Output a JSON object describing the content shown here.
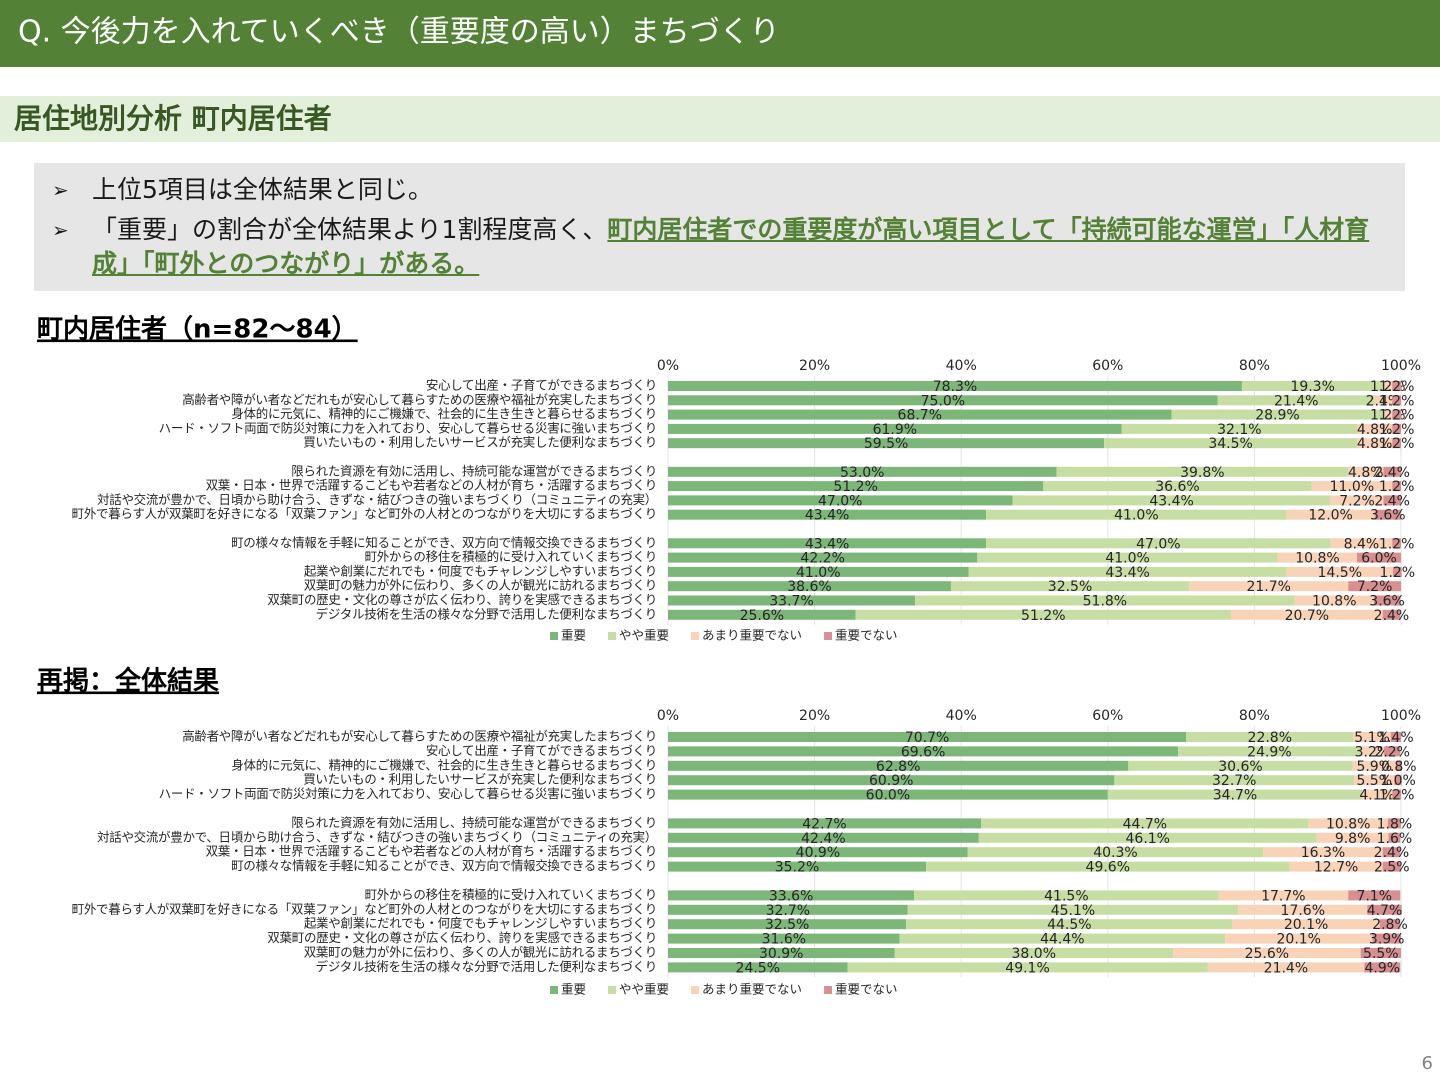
{
  "header": {
    "title": "Q.  今後力を入れていくべき（重要度の高い）まちづくり"
  },
  "section": {
    "title": "居住地別分析   町内居住者"
  },
  "bullets": [
    {
      "text": "上位5項目は全体結果と同じ。"
    },
    {
      "text": "「重要」の割合が全体結果より1割程度高く、",
      "highlight": "町内居住者での重要度が高い項目として「持続可能な運営」「人材育成」「町外とのつながり」がある。"
    }
  ],
  "page_number": "6",
  "chart_data": [
    {
      "type": "stacked-barh",
      "title": "町内居住者（n=82～84）",
      "categories": [
        "安心して出産・子育てができるまちづくり",
        "高齢者や障がい者などだれもが安心して暮らすための医療や福祉が充実したまちづくり",
        "身体的に元気に、精神的にご機嫌で、社会的に生き生きと暮らせるまちづくり",
        "ハード・ソフト両面で防災対策に力を入れており、安心して暮らせる災害に強いまちづくり",
        "買いたいもの・利用したいサービスが充実した便利なまちづくり",
        null,
        "限られた資源を有効に活用し、持続可能な運営ができるまちづくり",
        "双葉・日本・世界で活躍するこどもや若者などの人材が育ち・活躍するまちづくり",
        "対話や交流が豊かで、日頃から助け合う、きずな・結びつきの強いまちづくり（コミュニティの充実）",
        "町外で暮らす人が双葉町を好きになる「双葉ファン」など町外の人材とのつながりを大切にするまちづくり",
        null,
        "町の様々な情報を手軽に知ることができ、双方向で情報交換できるまちづくり",
        "町外からの移住を積極的に受け入れていくまちづくり",
        "起業や創業にだれでも・何度でもチャレンジしやすいまちづくり",
        "双葉町の魅力が外に伝わり、多くの人が観光に訪れるまちづくり",
        "双葉町の歴史・文化の尊さが広く伝わり、誇りを実感できるまちづくり",
        "デジタル技術を生活の様々な分野で活用した便利なまちづくり"
      ],
      "series": [
        {
          "name": "重要",
          "color": "#7cb679",
          "values": [
            78.3,
            75.0,
            68.7,
            61.9,
            59.5,
            null,
            53.0,
            51.2,
            47.0,
            43.4,
            null,
            43.4,
            42.2,
            41.0,
            38.6,
            33.7,
            25.6
          ],
          "value_labels": [
            "78.3%",
            "75.0%",
            "68.7%",
            "61.9%",
            "59.5%",
            null,
            "53.0%",
            "51.2%",
            "47.0%",
            "43.4%",
            null,
            "43.4%",
            "42.2%",
            "41.0%",
            "38.6%",
            "33.7%",
            "25.6%"
          ]
        },
        {
          "name": "やや重要",
          "color": "#c6dea3",
          "values": [
            19.3,
            21.4,
            28.9,
            32.1,
            34.5,
            null,
            39.8,
            36.6,
            43.4,
            41.0,
            null,
            47.0,
            41.0,
            43.4,
            32.5,
            51.8,
            51.2
          ],
          "value_labels": [
            "19.3%",
            "21.4%",
            "28.9%",
            "32.1%",
            "34.5%",
            null,
            "39.8%",
            "36.6%",
            "43.4%",
            "41.0%",
            null,
            "47.0%",
            "41.0%",
            "43.4%",
            "32.5%",
            "51.8%",
            "51.2%"
          ]
        },
        {
          "name": "あまり重要でない",
          "color": "#f8d3b8",
          "values": [
            1.2,
            2.4,
            1.2,
            4.8,
            4.8,
            null,
            4.8,
            11.0,
            7.2,
            12.0,
            null,
            8.4,
            10.8,
            14.5,
            21.7,
            10.8,
            20.7
          ],
          "value_labels": [
            "1.2%",
            "2.4%",
            "1.2%",
            "4.8%",
            "4.8%",
            null,
            "4.8%",
            "11.0%",
            "7.2%",
            "12.0%",
            null,
            "8.4%",
            "10.8%",
            "14.5%",
            "21.7%",
            "10.8%",
            "20.7%"
          ]
        },
        {
          "name": "重要でない",
          "color": "#d88f8f",
          "values": [
            1.2,
            1.2,
            1.2,
            1.2,
            1.2,
            null,
            2.4,
            1.2,
            2.4,
            3.6,
            null,
            1.2,
            6.0,
            1.2,
            7.2,
            3.6,
            2.4
          ],
          "value_labels": [
            "1.2%",
            "1.2%",
            "1.2%",
            "1.2%",
            "1.2%",
            null,
            "2.4%",
            "1.2%",
            "2.4%",
            "3.6%",
            null,
            "1.2%",
            "6.0%",
            "1.2%",
            "7.2%",
            "3.6%",
            "2.4%"
          ]
        }
      ],
      "xlim": [
        0,
        100
      ],
      "xticks": [
        {
          "value": 0,
          "label": "0%"
        },
        {
          "value": 20,
          "label": "20%"
        },
        {
          "value": 40,
          "label": "40%"
        },
        {
          "value": 60,
          "label": "60%"
        },
        {
          "value": 80,
          "label": "80%"
        },
        {
          "value": 100,
          "label": "100%"
        }
      ],
      "grid": true,
      "legend": "bottom"
    },
    {
      "type": "stacked-barh",
      "title": "再掲：全体結果",
      "categories": [
        "高齢者や障がい者などだれもが安心して暮らすための医療や福祉が充実したまちづくり",
        "安心して出産・子育てができるまちづくり",
        "身体的に元気に、精神的にご機嫌で、社会的に生き生きと暮らせるまちづくり",
        "買いたいもの・利用したいサービスが充実した便利なまちづくり",
        "ハード・ソフト両面で防災対策に力を入れており、安心して暮らせる災害に強いまちづくり",
        null,
        "限られた資源を有効に活用し、持続可能な運営ができるまちづくり",
        "対話や交流が豊かで、日頃から助け合う、きずな・結びつきの強いまちづくり（コミュニティの充実）",
        "双葉・日本・世界で活躍するこどもや若者などの人材が育ち・活躍するまちづくり",
        "町の様々な情報を手軽に知ることができ、双方向で情報交換できるまちづくり",
        null,
        "町外からの移住を積極的に受け入れていくまちづくり",
        "町外で暮らす人が双葉町を好きになる「双葉ファン」など町外の人材とのつながりを大切にするまちづくり",
        "起業や創業にだれでも・何度でもチャレンジしやすいまちづくり",
        "双葉町の歴史・文化の尊さが広く伝わり、誇りを実感できるまちづくり",
        "双葉町の魅力が外に伝わり、多くの人が観光に訪れるまちづくり",
        "デジタル技術を生活の様々な分野で活用した便利なまちづくり"
      ],
      "series": [
        {
          "name": "重要",
          "color": "#7cb679",
          "values": [
            70.7,
            69.6,
            62.8,
            60.9,
            60.0,
            null,
            42.7,
            42.4,
            40.9,
            35.2,
            null,
            33.6,
            32.7,
            32.5,
            31.6,
            30.9,
            24.5
          ],
          "value_labels": [
            "70.7%",
            "69.6%",
            "62.8%",
            "60.9%",
            "60.0%",
            null,
            "42.7%",
            "42.4%",
            "40.9%",
            "35.2%",
            null,
            "33.6%",
            "32.7%",
            "32.5%",
            "31.6%",
            "30.9%",
            "24.5%"
          ]
        },
        {
          "name": "やや重要",
          "color": "#c6dea3",
          "values": [
            22.8,
            24.9,
            30.6,
            32.7,
            34.7,
            null,
            44.7,
            46.1,
            40.3,
            49.6,
            null,
            41.5,
            45.1,
            44.5,
            44.4,
            38.0,
            49.1
          ],
          "value_labels": [
            "22.8%",
            "24.9%",
            "30.6%",
            "32.7%",
            "34.7%",
            null,
            "44.7%",
            "46.1%",
            "40.3%",
            "49.6%",
            null,
            "41.5%",
            "45.1%",
            "44.5%",
            "44.4%",
            "38.0%",
            "49.1%"
          ]
        },
        {
          "name": "あまり重要でない",
          "color": "#f8d3b8",
          "values": [
            5.1,
            3.2,
            5.9,
            5.5,
            4.1,
            null,
            10.8,
            9.8,
            16.3,
            12.7,
            null,
            17.7,
            17.6,
            20.1,
            20.1,
            25.6,
            21.4
          ],
          "value_labels": [
            "5.1%",
            "3.2%",
            "5.9%",
            "5.5%",
            "4.1%",
            null,
            "10.8%",
            "9.8%",
            "16.3%",
            "12.7%",
            null,
            "17.7%",
            "17.6%",
            "20.1%",
            "20.1%",
            "25.6%",
            "21.4%"
          ]
        },
        {
          "name": "重要でない",
          "color": "#d88f8f",
          "values": [
            1.4,
            2.2,
            0.8,
            1.0,
            1.2,
            null,
            1.8,
            1.6,
            2.4,
            2.5,
            null,
            7.1,
            4.7,
            2.8,
            3.9,
            5.5,
            4.9
          ],
          "value_labels": [
            "1.4%",
            "2.2%",
            "0.8%",
            "1.0%",
            "1.2%",
            null,
            "1.8%",
            "1.6%",
            "2.4%",
            "2.5%",
            null,
            "7.1%",
            "4.7%",
            "2.8%",
            "3.9%",
            "5.5%",
            "4.9%"
          ]
        }
      ],
      "xlim": [
        0,
        100
      ],
      "xticks": [
        {
          "value": 0,
          "label": "0%"
        },
        {
          "value": 20,
          "label": "20%"
        },
        {
          "value": 40,
          "label": "40%"
        },
        {
          "value": 60,
          "label": "60%"
        },
        {
          "value": 80,
          "label": "80%"
        },
        {
          "value": 100,
          "label": "100%"
        }
      ],
      "grid": true,
      "legend": "bottom"
    }
  ]
}
